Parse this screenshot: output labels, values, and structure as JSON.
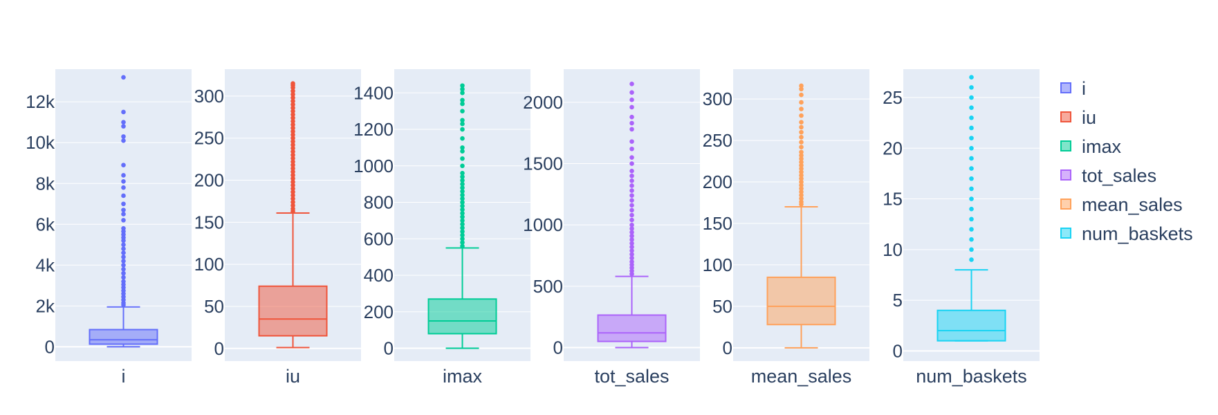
{
  "chart_data": {
    "type": "box",
    "legend_position": "right",
    "grid": true,
    "colors": {
      "plot_bg": "#E5ECF6",
      "grid": "#ffffff",
      "text": "#2a3f5f"
    },
    "panels": [
      {
        "name": "i",
        "xlabel": "i",
        "color": "#636efa",
        "ylim": [
          -700,
          13600
        ],
        "yticks": [
          0,
          2000,
          4000,
          6000,
          8000,
          10000,
          12000
        ],
        "ytick_labels": [
          "0",
          "2k",
          "4k",
          "6k",
          "8k",
          "10k",
          "12k"
        ],
        "stats": {
          "lower_whisker": 0,
          "q1": 130,
          "median": 340,
          "q3": 840,
          "upper_whisker": 1950
        },
        "outliers": [
          2050,
          2150,
          2300,
          2450,
          2600,
          2750,
          2900,
          3050,
          3200,
          3400,
          3600,
          3800,
          4000,
          4200,
          4400,
          4600,
          4800,
          5000,
          5200,
          5350,
          5500,
          5650,
          5800,
          6200,
          6500,
          6700,
          7000,
          7400,
          7800,
          8100,
          8400,
          8900,
          10100,
          10300,
          10800,
          11000,
          11500,
          13200
        ]
      },
      {
        "name": "iu",
        "xlabel": "iu",
        "color": "#EF553B",
        "ylim": [
          -15,
          332
        ],
        "yticks": [
          0,
          50,
          100,
          150,
          200,
          250,
          300
        ],
        "ytick_labels": [
          "0",
          "50",
          "100",
          "150",
          "200",
          "250",
          "300"
        ],
        "stats": {
          "lower_whisker": 1,
          "q1": 15,
          "median": 35,
          "q3": 74,
          "upper_whisker": 161
        },
        "outliers": [
          163,
          166,
          170,
          174,
          178,
          182,
          186,
          190,
          194,
          198,
          202,
          206,
          210,
          214,
          218,
          222,
          226,
          230,
          234,
          238,
          242,
          246,
          250,
          254,
          258,
          262,
          266,
          270,
          274,
          278,
          282,
          286,
          290,
          294,
          298,
          302,
          306,
          310,
          313,
          315
        ]
      },
      {
        "name": "imax",
        "xlabel": "imax",
        "color": "#00cc96",
        "ylim": [
          -70,
          1530
        ],
        "yticks": [
          0,
          200,
          400,
          600,
          800,
          1000,
          1200,
          1400
        ],
        "ytick_labels": [
          "0",
          "200",
          "400",
          "600",
          "800",
          "1000",
          "1200",
          "1400"
        ],
        "stats": {
          "lower_whisker": 0,
          "q1": 80,
          "median": 150,
          "q3": 270,
          "upper_whisker": 550
        },
        "outliers": [
          560,
          580,
          600,
          620,
          640,
          660,
          680,
          700,
          720,
          740,
          760,
          780,
          800,
          820,
          840,
          860,
          880,
          900,
          920,
          940,
          960,
          1000,
          1040,
          1080,
          1100,
          1150,
          1200,
          1230,
          1250,
          1300,
          1340,
          1360,
          1400,
          1420,
          1440
        ]
      },
      {
        "name": "tot_sales",
        "xlabel": "tot_sales",
        "color": "#ab63fa",
        "ylim": [
          -110,
          2270
        ],
        "yticks": [
          0,
          500,
          1000,
          1500,
          2000
        ],
        "ytick_labels": [
          "0",
          "500",
          "1000",
          "1500",
          "2000"
        ],
        "stats": {
          "lower_whisker": 0,
          "q1": 50,
          "median": 120,
          "q3": 265,
          "upper_whisker": 580
        },
        "outliers": [
          600,
          625,
          650,
          675,
          700,
          730,
          760,
          790,
          820,
          850,
          880,
          910,
          940,
          970,
          1000,
          1040,
          1080,
          1120,
          1160,
          1200,
          1240,
          1280,
          1320,
          1360,
          1400,
          1440,
          1500,
          1550,
          1620,
          1680,
          1780,
          1830,
          1880,
          1960,
          2020,
          2080,
          2150
        ]
      },
      {
        "name": "mean_sales",
        "xlabel": "mean_sales",
        "color": "#FFA15A",
        "ylim": [
          -16,
          336
        ],
        "yticks": [
          0,
          50,
          100,
          150,
          200,
          250,
          300
        ],
        "ytick_labels": [
          "0",
          "50",
          "100",
          "150",
          "200",
          "250",
          "300"
        ],
        "stats": {
          "lower_whisker": 0,
          "q1": 28,
          "median": 50,
          "q3": 85,
          "upper_whisker": 170
        },
        "outliers": [
          173,
          176,
          180,
          184,
          188,
          192,
          196,
          200,
          204,
          208,
          212,
          216,
          220,
          224,
          228,
          232,
          236,
          242,
          248,
          254,
          260,
          266,
          272,
          280,
          288,
          296,
          305,
          312,
          316
        ]
      },
      {
        "name": "num_baskets",
        "xlabel": "num_baskets",
        "color": "#19d3f3",
        "ylim": [
          -1,
          27.8
        ],
        "yticks": [
          0,
          5,
          10,
          15,
          20,
          25
        ],
        "ytick_labels": [
          "0",
          "5",
          "10",
          "15",
          "20",
          "25"
        ],
        "stats": {
          "lower_whisker": 1,
          "q1": 1,
          "median": 2,
          "q3": 4,
          "upper_whisker": 8
        },
        "outliers": [
          9,
          10,
          11,
          12,
          13,
          14,
          15,
          16,
          17,
          18,
          19,
          20,
          21,
          22,
          23,
          24,
          25,
          26,
          27
        ]
      }
    ],
    "legend": [
      "i",
      "iu",
      "imax",
      "tot_sales",
      "mean_sales",
      "num_baskets"
    ]
  }
}
